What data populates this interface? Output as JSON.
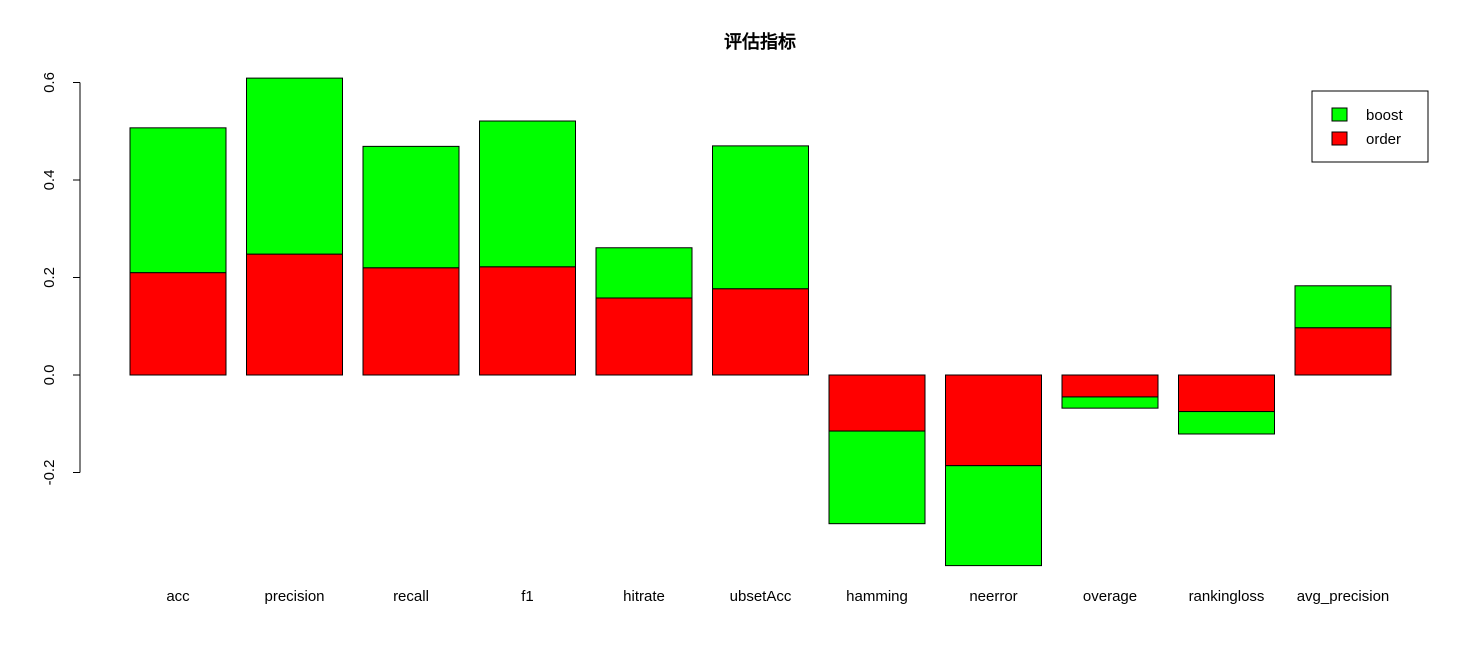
{
  "chart_data": {
    "type": "bar",
    "stacked": true,
    "title": "评估指标",
    "xlabel": "",
    "ylabel": "",
    "ylim": [
      -0.39,
      0.61
    ],
    "yticks": [
      "-0.2",
      "0.0",
      "0.2",
      "0.4",
      "0.6"
    ],
    "ytick_values": [
      -0.2,
      0.0,
      0.2,
      0.4,
      0.6
    ],
    "categories": [
      "acc",
      "precision",
      "recall",
      "f1",
      "hitrate",
      "ubsetAcc",
      "hamming",
      "neerror",
      "overage",
      "rankingloss",
      "avg_precision"
    ],
    "series": [
      {
        "name": "order",
        "color": "#ff0000",
        "values": [
          0.21,
          0.248,
          0.22,
          0.222,
          0.158,
          0.177,
          -0.115,
          -0.186,
          -0.045,
          -0.075,
          0.097
        ]
      },
      {
        "name": "boost",
        "color": "#00ff00",
        "values": [
          0.297,
          0.361,
          0.249,
          0.299,
          0.103,
          0.293,
          -0.19,
          -0.205,
          -0.023,
          -0.046,
          0.086
        ]
      }
    ],
    "legend": {
      "position": "top-right",
      "entries": [
        {
          "label": "boost",
          "color": "#00ff00"
        },
        {
          "label": "order",
          "color": "#ff0000"
        }
      ]
    },
    "grid": false
  }
}
